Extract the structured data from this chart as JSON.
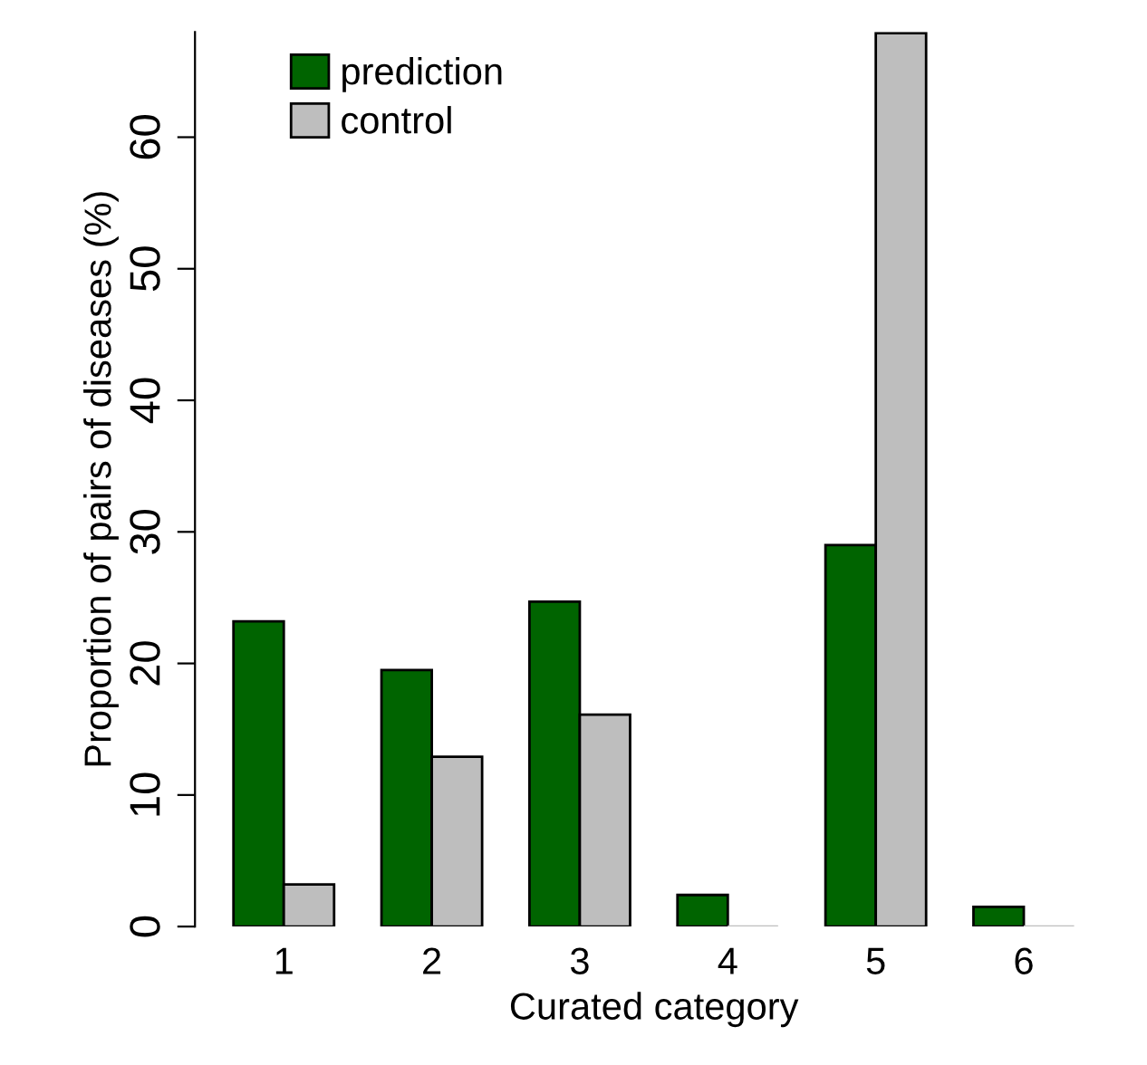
{
  "chart_data": {
    "type": "bar",
    "xlabel": "Curated category",
    "ylabel": "Proportion of pairs of diseases (%)",
    "categories": [
      "1",
      "2",
      "3",
      "4",
      "5",
      "6"
    ],
    "series": [
      {
        "name": "prediction",
        "color": "#006400",
        "values": [
          23.2,
          19.5,
          24.7,
          2.4,
          29.0,
          1.5
        ]
      },
      {
        "name": "control",
        "color": "#bebebe",
        "values": [
          3.2,
          12.9,
          16.1,
          0,
          67.9,
          0
        ]
      }
    ],
    "ylim": [
      0,
      68
    ],
    "yticks": [
      0,
      10,
      20,
      30,
      40,
      50,
      60
    ],
    "grid": false,
    "legend": "top left"
  }
}
